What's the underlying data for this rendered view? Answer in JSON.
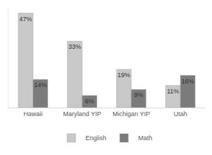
{
  "chart_data": {
    "type": "bar",
    "categories": [
      "Hawaii",
      "Maryland YIP",
      "Michigan YIP",
      "Utah"
    ],
    "series": [
      {
        "name": "English",
        "color": "#c9c9c9",
        "values": [
          47,
          33,
          19,
          11
        ],
        "value_labels": [
          "47%",
          "33%",
          "19%",
          "11%"
        ]
      },
      {
        "name": "Math",
        "color": "#7b7b7b",
        "values": [
          14,
          6,
          9,
          16
        ],
        "value_labels": [
          "14%",
          "6%",
          "9%",
          "16%"
        ]
      }
    ],
    "ylim": [
      0,
      50
    ],
    "grid": false,
    "legend": "bottom",
    "data_labels": true,
    "tick_labels": "x"
  }
}
